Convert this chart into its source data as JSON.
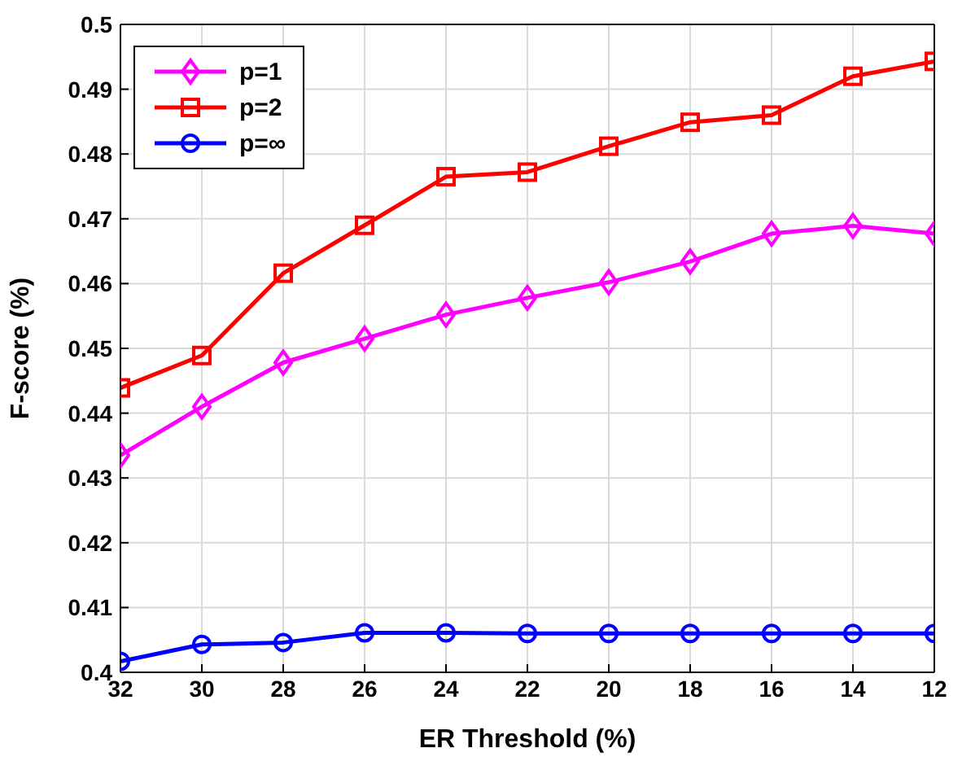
{
  "chart_data": {
    "type": "line",
    "xlabel": "ER Threshold (%)",
    "ylabel": "F-score (%)",
    "x": [
      32,
      30,
      28,
      26,
      24,
      22,
      20,
      18,
      16,
      14,
      12
    ],
    "xlim": [
      32,
      12
    ],
    "xticks": [
      32,
      30,
      28,
      26,
      24,
      22,
      20,
      18,
      16,
      14,
      12
    ],
    "ylim": [
      0.4,
      0.5
    ],
    "yticks": [
      0.4,
      0.41,
      0.42,
      0.43,
      0.44,
      0.45,
      0.46,
      0.47,
      0.48,
      0.49,
      0.5
    ],
    "grid": true,
    "legend": "top left",
    "line_style": "solid",
    "series": [
      {
        "name": "p=1",
        "color": "#ff00ff",
        "marker": "diamond",
        "values": [
          0.4335,
          0.441,
          0.4478,
          0.4515,
          0.4552,
          0.4578,
          0.4602,
          0.4634,
          0.4677,
          0.4689,
          0.4677
        ]
      },
      {
        "name": "p=2",
        "color": "#ff0000",
        "marker": "square",
        "values": [
          0.4439,
          0.4489,
          0.4616,
          0.469,
          0.4765,
          0.4772,
          0.4812,
          0.4849,
          0.486,
          0.492,
          0.4943
        ]
      },
      {
        "name": "p=∞",
        "color": "#0000ff",
        "marker": "circle",
        "values": [
          0.4017,
          0.4043,
          0.4046,
          0.4061,
          0.4061,
          0.406,
          0.406,
          0.406,
          0.406,
          0.406,
          0.406
        ]
      }
    ]
  }
}
